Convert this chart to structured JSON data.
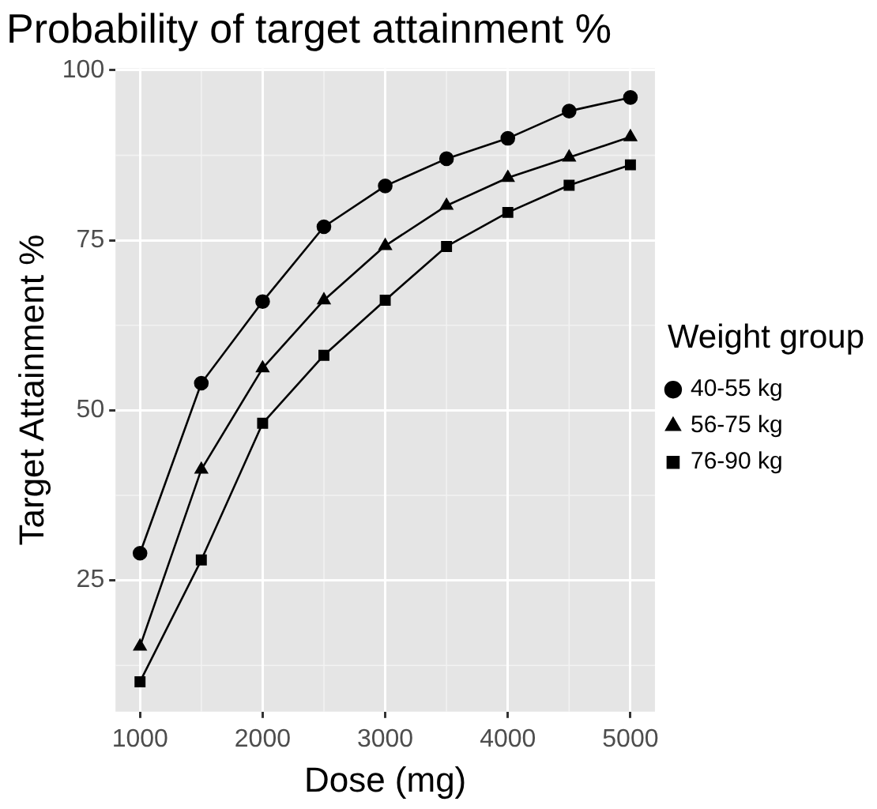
{
  "chart_data": {
    "type": "line",
    "title": "Probability of target attainment %",
    "xlabel": "Dose (mg)",
    "ylabel": "Target Attainment %",
    "legend_title": "Weight group",
    "legend": "right",
    "grid": true,
    "x": [
      1000,
      1500,
      2000,
      2500,
      3000,
      3500,
      4000,
      4500,
      5000
    ],
    "xlim": [
      800,
      5200
    ],
    "xticks": [
      1000,
      2000,
      3000,
      4000,
      5000
    ],
    "ylim": [
      5.7,
      100.3
    ],
    "yticks": [
      25,
      50,
      75,
      100
    ],
    "series": [
      {
        "name": "40-55 kg",
        "color": "#000000",
        "marker": "circle",
        "values": [
          29,
          54,
          66,
          77,
          83,
          87,
          90,
          94,
          96
        ]
      },
      {
        "name": "56-75 kg",
        "color": "#000000",
        "marker": "triangle",
        "values": [
          15.3,
          41.3,
          56.2,
          66.2,
          74.2,
          80.1,
          84.2,
          87.2,
          90.2
        ]
      },
      {
        "name": "76-90 kg",
        "color": "#000000",
        "marker": "square",
        "values": [
          10.1,
          28,
          48.1,
          58.1,
          66.2,
          74.1,
          79.1,
          83.1,
          86.1
        ]
      }
    ]
  }
}
